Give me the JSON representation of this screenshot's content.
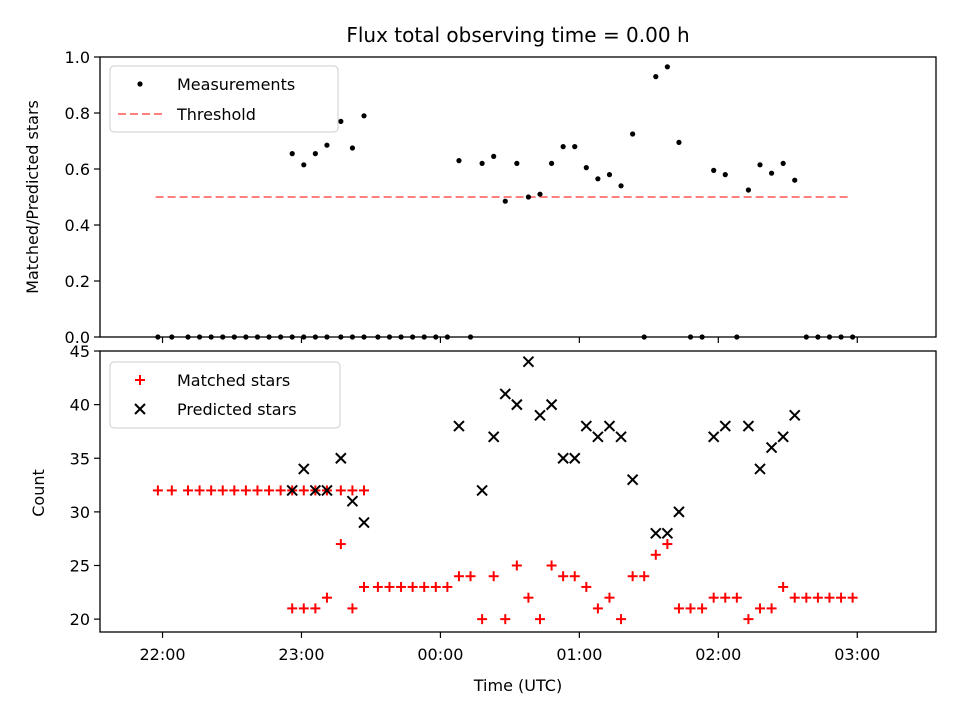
{
  "chart_data": [
    {
      "type": "scatter",
      "title": "Flux total observing time = 0.00 h",
      "xlabel": "",
      "ylabel": "Matched/Predicted stars",
      "ylim": [
        0,
        1.0
      ],
      "xlim": [
        "21:33",
        "03:34"
      ],
      "y_ticks": [
        "0.0",
        "0.2",
        "0.4",
        "0.6",
        "0.8",
        "1.0"
      ],
      "grid": false,
      "legend_position": "upper-left",
      "series": [
        {
          "name": "Measurements",
          "style": "dot",
          "color": "#000000",
          "points": [
            [
              "21:58",
              0.0
            ],
            [
              "22:04",
              0.0
            ],
            [
              "22:11",
              0.0
            ],
            [
              "22:16",
              0.0
            ],
            [
              "22:21",
              0.0
            ],
            [
              "22:26",
              0.0
            ],
            [
              "22:31",
              0.0
            ],
            [
              "22:36",
              0.0
            ],
            [
              "22:41",
              0.0
            ],
            [
              "22:46",
              0.0
            ],
            [
              "22:51",
              0.0
            ],
            [
              "22:56",
              0.0
            ],
            [
              "23:01",
              0.0
            ],
            [
              "23:06",
              0.0
            ],
            [
              "23:11",
              0.0
            ],
            [
              "23:17",
              0.0
            ],
            [
              "23:22",
              0.0
            ],
            [
              "23:27",
              0.0
            ],
            [
              "22:56",
              0.655
            ],
            [
              "23:01",
              0.615
            ],
            [
              "23:06",
              0.655
            ],
            [
              "23:11",
              0.685
            ],
            [
              "23:17",
              0.77
            ],
            [
              "23:22",
              0.675
            ],
            [
              "23:27",
              0.79
            ],
            [
              "23:33",
              0.0
            ],
            [
              "23:38",
              0.0
            ],
            [
              "23:43",
              0.0
            ],
            [
              "23:48",
              0.0
            ],
            [
              "23:53",
              0.0
            ],
            [
              "23:58",
              0.0
            ],
            [
              "00:03",
              0.0
            ],
            [
              "00:13",
              0.0
            ],
            [
              "00:08",
              0.63
            ],
            [
              "00:18",
              0.62
            ],
            [
              "00:23",
              0.645
            ],
            [
              "00:28",
              0.485
            ],
            [
              "00:33",
              0.62
            ],
            [
              "00:38",
              0.5
            ],
            [
              "00:43",
              0.51
            ],
            [
              "00:48",
              0.62
            ],
            [
              "00:53",
              0.68
            ],
            [
              "00:58",
              0.68
            ],
            [
              "01:03",
              0.605
            ],
            [
              "01:08",
              0.565
            ],
            [
              "01:13",
              0.58
            ],
            [
              "01:18",
              0.54
            ],
            [
              "01:23",
              0.725
            ],
            [
              "01:33",
              0.93
            ],
            [
              "01:38",
              0.965
            ],
            [
              "01:43",
              0.695
            ],
            [
              "01:58",
              0.595
            ],
            [
              "02:03",
              0.58
            ],
            [
              "02:13",
              0.525
            ],
            [
              "02:18",
              0.615
            ],
            [
              "02:23",
              0.585
            ],
            [
              "02:28",
              0.62
            ],
            [
              "02:33",
              0.56
            ],
            [
              "01:28",
              0.0
            ],
            [
              "01:48",
              0.0
            ],
            [
              "01:53",
              0.0
            ],
            [
              "02:08",
              0.0
            ],
            [
              "02:38",
              0.0
            ],
            [
              "02:43",
              0.0
            ],
            [
              "02:48",
              0.0
            ],
            [
              "02:53",
              0.0
            ],
            [
              "02:58",
              0.0
            ]
          ]
        },
        {
          "name": "Threshold",
          "style": "dashed-line",
          "color": "#ff7f7f",
          "points": [
            [
              "21:57",
              0.5
            ],
            [
              "02:57",
              0.5
            ]
          ]
        }
      ]
    },
    {
      "type": "scatter",
      "title": "",
      "xlabel": "Time (UTC)",
      "ylabel": "Count",
      "ylim": [
        18.8,
        45
      ],
      "xlim": [
        "21:33",
        "03:34"
      ],
      "y_ticks": [
        "20",
        "25",
        "30",
        "35",
        "40",
        "45"
      ],
      "x_ticks": [
        "22:00",
        "23:00",
        "00:00",
        "01:00",
        "02:00",
        "03:00"
      ],
      "grid": false,
      "legend_position": "upper-left",
      "series": [
        {
          "name": "Matched stars",
          "style": "plus",
          "color": "#ff0000",
          "points": [
            [
              "21:58",
              32
            ],
            [
              "22:04",
              32
            ],
            [
              "22:11",
              32
            ],
            [
              "22:16",
              32
            ],
            [
              "22:21",
              32
            ],
            [
              "22:26",
              32
            ],
            [
              "22:31",
              32
            ],
            [
              "22:36",
              32
            ],
            [
              "22:41",
              32
            ],
            [
              "22:46",
              32
            ],
            [
              "22:51",
              32
            ],
            [
              "22:56",
              32
            ],
            [
              "23:01",
              32
            ],
            [
              "23:06",
              32
            ],
            [
              "23:11",
              32
            ],
            [
              "23:17",
              32
            ],
            [
              "23:22",
              32
            ],
            [
              "23:27",
              32
            ],
            [
              "22:56",
              21
            ],
            [
              "23:01",
              21
            ],
            [
              "23:06",
              21
            ],
            [
              "23:11",
              22
            ],
            [
              "23:17",
              27
            ],
            [
              "23:22",
              21
            ],
            [
              "23:27",
              23
            ],
            [
              "23:33",
              23
            ],
            [
              "23:38",
              23
            ],
            [
              "23:43",
              23
            ],
            [
              "23:48",
              23
            ],
            [
              "23:53",
              23
            ],
            [
              "23:58",
              23
            ],
            [
              "00:03",
              23
            ],
            [
              "00:08",
              24
            ],
            [
              "00:13",
              24
            ],
            [
              "00:18",
              20
            ],
            [
              "00:23",
              24
            ],
            [
              "00:28",
              20
            ],
            [
              "00:33",
              25
            ],
            [
              "00:38",
              22
            ],
            [
              "00:43",
              20
            ],
            [
              "00:48",
              25
            ],
            [
              "00:53",
              24
            ],
            [
              "00:58",
              24
            ],
            [
              "01:03",
              23
            ],
            [
              "01:08",
              21
            ],
            [
              "01:13",
              22
            ],
            [
              "01:18",
              20
            ],
            [
              "01:23",
              24
            ],
            [
              "01:28",
              24
            ],
            [
              "01:33",
              26
            ],
            [
              "01:38",
              27
            ],
            [
              "01:43",
              21
            ],
            [
              "01:48",
              21
            ],
            [
              "01:53",
              21
            ],
            [
              "01:58",
              22
            ],
            [
              "02:03",
              22
            ],
            [
              "02:08",
              22
            ],
            [
              "02:13",
              20
            ],
            [
              "02:18",
              21
            ],
            [
              "02:23",
              21
            ],
            [
              "02:28",
              23
            ],
            [
              "02:33",
              22
            ],
            [
              "02:38",
              22
            ],
            [
              "02:43",
              22
            ],
            [
              "02:48",
              22
            ],
            [
              "02:53",
              22
            ],
            [
              "02:58",
              22
            ]
          ]
        },
        {
          "name": "Predicted stars",
          "style": "x",
          "color": "#000000",
          "points": [
            [
              "22:56",
              32
            ],
            [
              "23:01",
              34
            ],
            [
              "23:06",
              32
            ],
            [
              "23:11",
              32
            ],
            [
              "23:17",
              35
            ],
            [
              "23:22",
              31
            ],
            [
              "23:27",
              29
            ],
            [
              "00:08",
              38
            ],
            [
              "00:18",
              32
            ],
            [
              "00:23",
              37
            ],
            [
              "00:28",
              41
            ],
            [
              "00:33",
              40
            ],
            [
              "00:38",
              44
            ],
            [
              "00:43",
              39
            ],
            [
              "00:48",
              40
            ],
            [
              "00:53",
              35
            ],
            [
              "00:58",
              35
            ],
            [
              "01:03",
              38
            ],
            [
              "01:08",
              37
            ],
            [
              "01:13",
              38
            ],
            [
              "01:18",
              37
            ],
            [
              "01:23",
              33
            ],
            [
              "01:33",
              28
            ],
            [
              "01:38",
              28
            ],
            [
              "01:43",
              30
            ],
            [
              "01:58",
              37
            ],
            [
              "02:03",
              38
            ],
            [
              "02:13",
              38
            ],
            [
              "02:18",
              34
            ],
            [
              "02:23",
              36
            ],
            [
              "02:28",
              37
            ],
            [
              "02:33",
              39
            ]
          ]
        }
      ]
    }
  ]
}
